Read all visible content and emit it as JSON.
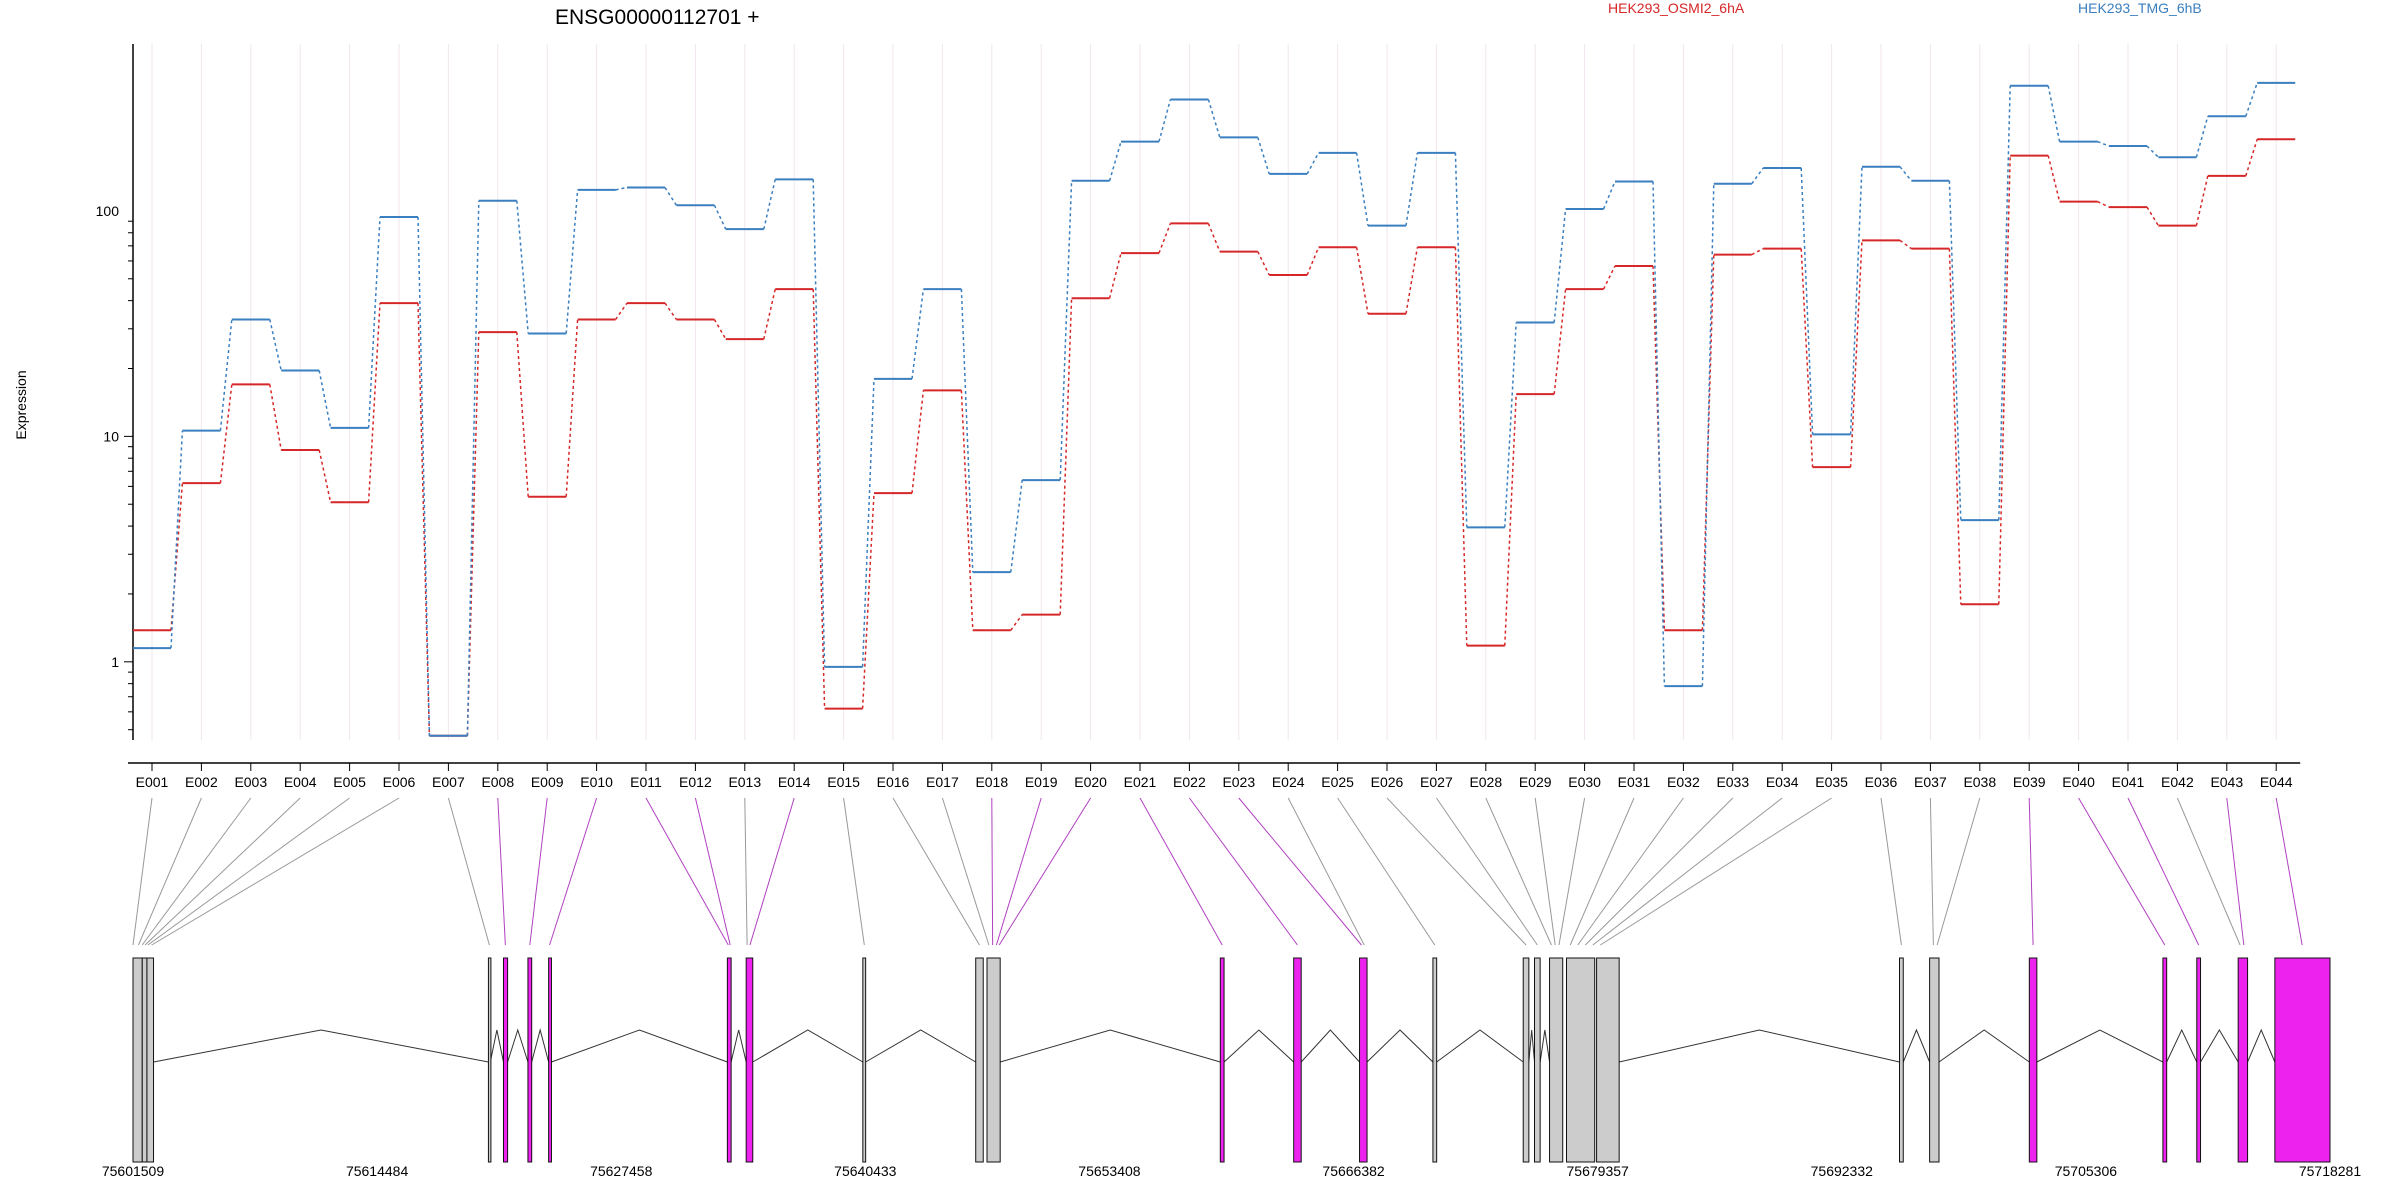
{
  "chart_data": {
    "type": "line",
    "title": "ENSG00000112701 +",
    "ylabel": "Expression",
    "y_scale": "log",
    "ylim": [
      0.45,
      550
    ],
    "grid": true,
    "y_ticks": [
      {
        "label": "1",
        "value": 1
      },
      {
        "label": "10",
        "value": 10
      },
      {
        "label": "100",
        "value": 100
      }
    ],
    "categories": [
      "E001",
      "E002",
      "E003",
      "E004",
      "E005",
      "E006",
      "E007",
      "E008",
      "E009",
      "E010",
      "E011",
      "E012",
      "E013",
      "E014",
      "E015",
      "E016",
      "E017",
      "E018",
      "E019",
      "E020",
      "E021",
      "E022",
      "E023",
      "E024",
      "E025",
      "E026",
      "E027",
      "E028",
      "E029",
      "E030",
      "E031",
      "E032",
      "E033",
      "E034",
      "E035",
      "E036",
      "E037",
      "E038",
      "E039",
      "E040",
      "E041",
      "E042",
      "E043",
      "E044"
    ],
    "series": [
      {
        "name": "HEK293_OSMI2_6hA",
        "color": "#d62728",
        "values": [
          1.38,
          6.2,
          17.0,
          8.7,
          5.1,
          39,
          0.47,
          29,
          5.4,
          33,
          39,
          33,
          27,
          45,
          0.62,
          5.6,
          16,
          1.38,
          1.62,
          41,
          65,
          88,
          66,
          52,
          69,
          35,
          69,
          1.18,
          15.4,
          45,
          57,
          1.38,
          64,
          68,
          7.3,
          74,
          68,
          1.8,
          176,
          110,
          104,
          86,
          143,
          208
        ]
      },
      {
        "name": "HEK293_TMG_6hB",
        "color": "#3a7fbf",
        "values": [
          1.15,
          10.6,
          33,
          19.6,
          10.9,
          94,
          0.47,
          111,
          28.6,
          124,
          127,
          106,
          83,
          138,
          0.95,
          18,
          45,
          2.5,
          6.4,
          136,
          203,
          312,
          212,
          146,
          181,
          86,
          181,
          3.95,
          32,
          102,
          135,
          0.78,
          132,
          155,
          10.2,
          157,
          136,
          4.25,
          359,
          203,
          194,
          173,
          263,
          370
        ]
      }
    ],
    "genome": {
      "tick_labels": [
        "75601509",
        "75614484",
        "75627458",
        "75640433",
        "75653408",
        "75666382",
        "75679357",
        "75692332",
        "75705306",
        "75718281"
      ],
      "start": 75601509,
      "end": 75718281,
      "gray_color": "#cccccc",
      "highlight_color": "#ee22ee",
      "exon_boxes": [
        {
          "start": 75601509,
          "end": 75602000,
          "color": "gray"
        },
        {
          "start": 75602000,
          "end": 75602250,
          "color": "gray"
        },
        {
          "start": 75602250,
          "end": 75602600,
          "color": "gray"
        },
        {
          "start": 75620400,
          "end": 75620500,
          "color": "gray"
        },
        {
          "start": 75621200,
          "end": 75621420,
          "color": "highlight"
        },
        {
          "start": 75622500,
          "end": 75622700,
          "color": "highlight"
        },
        {
          "start": 75623600,
          "end": 75623750,
          "color": "highlight"
        },
        {
          "start": 75633100,
          "end": 75633300,
          "color": "highlight"
        },
        {
          "start": 75634100,
          "end": 75634450,
          "color": "highlight"
        },
        {
          "start": 75640300,
          "end": 75640450,
          "color": "gray"
        },
        {
          "start": 75646300,
          "end": 75646700,
          "color": "gray"
        },
        {
          "start": 75646900,
          "end": 75647600,
          "color": "gray"
        },
        {
          "start": 75659300,
          "end": 75659500,
          "color": "highlight"
        },
        {
          "start": 75663200,
          "end": 75663600,
          "color": "highlight"
        },
        {
          "start": 75666700,
          "end": 75667100,
          "color": "highlight"
        },
        {
          "start": 75670600,
          "end": 75670800,
          "color": "gray"
        },
        {
          "start": 75675400,
          "end": 75675700,
          "color": "gray"
        },
        {
          "start": 75676000,
          "end": 75676300,
          "color": "gray"
        },
        {
          "start": 75676800,
          "end": 75677500,
          "color": "gray"
        },
        {
          "start": 75677700,
          "end": 75679200,
          "color": "gray"
        },
        {
          "start": 75679300,
          "end": 75680500,
          "color": "gray"
        },
        {
          "start": 75695400,
          "end": 75695600,
          "color": "gray"
        },
        {
          "start": 75697000,
          "end": 75697500,
          "color": "gray"
        },
        {
          "start": 75702300,
          "end": 75702700,
          "color": "highlight"
        },
        {
          "start": 75709400,
          "end": 75709600,
          "color": "highlight"
        },
        {
          "start": 75711200,
          "end": 75711400,
          "color": "highlight"
        },
        {
          "start": 75713400,
          "end": 75713900,
          "color": "highlight"
        },
        {
          "start": 75715350,
          "end": 75718281,
          "color": "highlight"
        }
      ],
      "introns": [
        [
          75602600,
          75620400
        ],
        [
          75620500,
          75621200
        ],
        [
          75621420,
          75622500
        ],
        [
          75622700,
          75623600
        ],
        [
          75623750,
          75633100
        ],
        [
          75633300,
          75634100
        ],
        [
          75634450,
          75640300
        ],
        [
          75640450,
          75646300
        ],
        [
          75647600,
          75659300
        ],
        [
          75659500,
          75663200
        ],
        [
          75663600,
          75666700
        ],
        [
          75667100,
          75670600
        ],
        [
          75670800,
          75675400
        ],
        [
          75675700,
          75676000
        ],
        [
          75676300,
          75676800
        ],
        [
          75680500,
          75695400
        ],
        [
          75695600,
          75697000
        ],
        [
          75697500,
          75702300
        ],
        [
          75702700,
          75709400
        ],
        [
          75709600,
          75711200
        ],
        [
          75711400,
          75713400
        ],
        [
          75713900,
          75715350
        ]
      ],
      "connectors": [
        {
          "exon": "E001",
          "pos": 75601509,
          "color": "gray"
        },
        {
          "exon": "E002",
          "pos": 75601800,
          "color": "gray"
        },
        {
          "exon": "E003",
          "pos": 75602000,
          "color": "gray"
        },
        {
          "exon": "E004",
          "pos": 75602150,
          "color": "gray"
        },
        {
          "exon": "E005",
          "pos": 75602300,
          "color": "gray"
        },
        {
          "exon": "E006",
          "pos": 75602500,
          "color": "gray"
        },
        {
          "exon": "E007",
          "pos": 75620450,
          "color": "gray"
        },
        {
          "exon": "E008",
          "pos": 75621300,
          "color": "highlight"
        },
        {
          "exon": "E009",
          "pos": 75622600,
          "color": "highlight"
        },
        {
          "exon": "E010",
          "pos": 75623650,
          "color": "highlight"
        },
        {
          "exon": "E011",
          "pos": 75633150,
          "color": "highlight"
        },
        {
          "exon": "E012",
          "pos": 75633250,
          "color": "highlight"
        },
        {
          "exon": "E013",
          "pos": 75634150,
          "color": "gray"
        },
        {
          "exon": "E014",
          "pos": 75634300,
          "color": "highlight"
        },
        {
          "exon": "E015",
          "pos": 75640380,
          "color": "gray"
        },
        {
          "exon": "E016",
          "pos": 75646500,
          "color": "gray"
        },
        {
          "exon": "E017",
          "pos": 75647000,
          "color": "gray"
        },
        {
          "exon": "E018",
          "pos": 75647200,
          "color": "highlight"
        },
        {
          "exon": "E019",
          "pos": 75647400,
          "color": "highlight"
        },
        {
          "exon": "E020",
          "pos": 75647550,
          "color": "highlight"
        },
        {
          "exon": "E021",
          "pos": 75659400,
          "color": "highlight"
        },
        {
          "exon": "E022",
          "pos": 75663400,
          "color": "highlight"
        },
        {
          "exon": "E023",
          "pos": 75666800,
          "color": "highlight"
        },
        {
          "exon": "E024",
          "pos": 75666950,
          "color": "gray"
        },
        {
          "exon": "E025",
          "pos": 75670700,
          "color": "gray"
        },
        {
          "exon": "E026",
          "pos": 75675550,
          "color": "gray"
        },
        {
          "exon": "E027",
          "pos": 75676150,
          "color": "gray"
        },
        {
          "exon": "E028",
          "pos": 75676900,
          "color": "gray"
        },
        {
          "exon": "E029",
          "pos": 75677100,
          "color": "gray"
        },
        {
          "exon": "E030",
          "pos": 75677300,
          "color": "gray"
        },
        {
          "exon": "E031",
          "pos": 75677900,
          "color": "gray"
        },
        {
          "exon": "E032",
          "pos": 75678300,
          "color": "gray"
        },
        {
          "exon": "E033",
          "pos": 75678700,
          "color": "gray"
        },
        {
          "exon": "E034",
          "pos": 75679100,
          "color": "gray"
        },
        {
          "exon": "E035",
          "pos": 75679500,
          "color": "gray"
        },
        {
          "exon": "E036",
          "pos": 75695500,
          "color": "gray"
        },
        {
          "exon": "E037",
          "pos": 75697200,
          "color": "gray"
        },
        {
          "exon": "E038",
          "pos": 75697400,
          "color": "gray"
        },
        {
          "exon": "E039",
          "pos": 75702500,
          "color": "highlight"
        },
        {
          "exon": "E040",
          "pos": 75709500,
          "color": "highlight"
        },
        {
          "exon": "E041",
          "pos": 75711300,
          "color": "highlight"
        },
        {
          "exon": "E042",
          "pos": 75713500,
          "color": "gray"
        },
        {
          "exon": "E043",
          "pos": 75713700,
          "color": "highlight"
        },
        {
          "exon": "E044",
          "pos": 75716800,
          "color": "highlight"
        }
      ]
    }
  }
}
